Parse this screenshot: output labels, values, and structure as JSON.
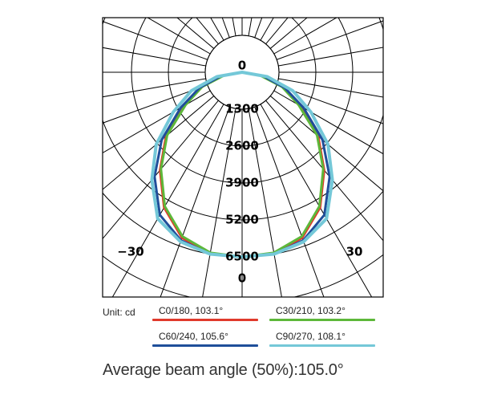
{
  "chart_data": {
    "type": "polar-line",
    "title": "",
    "unit_label": "Unit: cd",
    "radial_ticks": [
      0,
      1300,
      2600,
      3900,
      5200,
      6500
    ],
    "radial_max": 6500,
    "angle_labels": [
      {
        "text": "−30",
        "side": "left"
      },
      {
        "text": "30",
        "side": "right"
      },
      {
        "text": "0",
        "side": "bottom"
      }
    ],
    "angles_deg": [
      -90,
      -80,
      -70,
      -60,
      -50,
      -40,
      -30,
      -20,
      -10,
      0,
      10,
      20,
      30,
      40,
      50,
      60,
      70,
      80,
      90
    ],
    "series": [
      {
        "name": "C0/180, 103.1°",
        "color": "#e03a2c",
        "values": [
          0,
          700,
          1550,
          2350,
          3500,
          4500,
          5500,
          6200,
          6500,
          6500,
          6500,
          6200,
          5500,
          4500,
          3500,
          2350,
          1550,
          700,
          0
        ]
      },
      {
        "name": "C30/210, 103.2°",
        "color": "#5db83a",
        "values": [
          0,
          650,
          1500,
          2300,
          3450,
          4450,
          5450,
          6150,
          6450,
          6500,
          6450,
          6150,
          5450,
          4450,
          3450,
          2300,
          1500,
          650,
          0
        ]
      },
      {
        "name": "C60/240, 105.6°",
        "color": "#1f4e9a",
        "values": [
          0,
          750,
          1600,
          2500,
          3700,
          4800,
          5800,
          6300,
          6500,
          6500,
          6500,
          6300,
          5800,
          4800,
          3700,
          2500,
          1600,
          750,
          0
        ]
      },
      {
        "name": "C90/270, 108.1°",
        "color": "#74c8d8",
        "values": [
          0,
          900,
          1900,
          2800,
          3950,
          4950,
          5950,
          6350,
          6500,
          6500,
          6500,
          6350,
          5950,
          4950,
          3950,
          2800,
          1900,
          900,
          0
        ]
      }
    ]
  },
  "footer": {
    "beam_angle": "Average beam angle (50%):105.0°"
  }
}
